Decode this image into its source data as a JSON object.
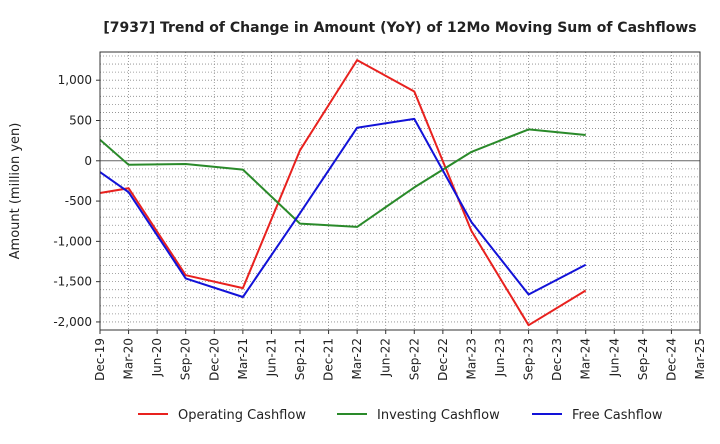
{
  "chart_data": {
    "type": "line",
    "title": "[7937]  Trend of Change in Amount (YoY) of 12Mo Moving Sum of Cashflows",
    "xlabel": "",
    "ylabel": "Amount (million yen)",
    "ylim": [
      -2100,
      1350
    ],
    "yticks": [
      1000,
      500,
      0,
      -500,
      -1000,
      -1500,
      -2000
    ],
    "ytick_labels": [
      "1,000",
      "500",
      "0",
      "-500",
      "-1,000",
      "-1,500",
      "-2,000"
    ],
    "categories": [
      "Dec-19",
      "Mar-20",
      "Jun-20",
      "Sep-20",
      "Dec-20",
      "Mar-21",
      "Jun-21",
      "Sep-21",
      "Dec-21",
      "Mar-22",
      "Jun-22",
      "Sep-22",
      "Dec-22",
      "Mar-23",
      "Jun-23",
      "Sep-23",
      "Dec-23",
      "Mar-24",
      "Jun-24",
      "Sep-24",
      "Dec-24",
      "Mar-25"
    ],
    "grid": true,
    "legend_position": "bottom",
    "series": [
      {
        "name": "Operating Cashflow",
        "color": "#e8211e",
        "values": [
          -400,
          -340,
          null,
          -1420,
          null,
          -1580,
          null,
          130,
          null,
          1250,
          null,
          860,
          null,
          -870,
          null,
          -2040,
          null,
          -1610,
          null,
          null,
          null,
          null
        ]
      },
      {
        "name": "Investing Cashflow",
        "color": "#2a8a2a",
        "values": [
          260,
          -50,
          null,
          -40,
          null,
          -110,
          null,
          -780,
          null,
          -820,
          null,
          -330,
          null,
          110,
          null,
          390,
          null,
          320,
          null,
          null,
          null,
          null
        ]
      },
      {
        "name": "Free Cashflow",
        "color": "#1212d8",
        "values": [
          -140,
          -390,
          null,
          -1460,
          null,
          -1690,
          null,
          -650,
          null,
          410,
          null,
          520,
          null,
          -760,
          null,
          -1660,
          null,
          -1290,
          null,
          null,
          null,
          null
        ]
      }
    ]
  }
}
